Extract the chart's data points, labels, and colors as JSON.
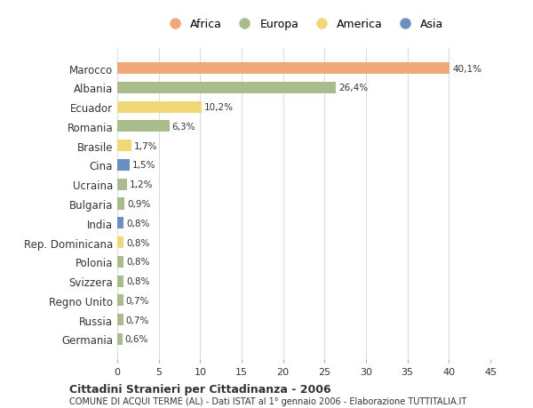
{
  "countries": [
    "Marocco",
    "Albania",
    "Ecuador",
    "Romania",
    "Brasile",
    "Cina",
    "Ucraina",
    "Bulgaria",
    "India",
    "Rep. Dominicana",
    "Polonia",
    "Svizzera",
    "Regno Unito",
    "Russia",
    "Germania"
  ],
  "values": [
    40.1,
    26.4,
    10.2,
    6.3,
    1.7,
    1.5,
    1.2,
    0.9,
    0.8,
    0.8,
    0.8,
    0.8,
    0.7,
    0.7,
    0.6
  ],
  "labels": [
    "40,1%",
    "26,4%",
    "10,2%",
    "6,3%",
    "1,7%",
    "1,5%",
    "1,2%",
    "0,9%",
    "0,8%",
    "0,8%",
    "0,8%",
    "0,8%",
    "0,7%",
    "0,7%",
    "0,6%"
  ],
  "colors": [
    "#F0A878",
    "#A8BC8C",
    "#F0D878",
    "#A8BC8C",
    "#F0D878",
    "#6A90C0",
    "#A8BC8C",
    "#A8BC8C",
    "#6A90C0",
    "#F0D878",
    "#A8BC8C",
    "#A8BC8C",
    "#A8BC8C",
    "#A8BC8C",
    "#A8BC8C"
  ],
  "legend_labels": [
    "Africa",
    "Europa",
    "America",
    "Asia"
  ],
  "legend_colors": [
    "#F0A878",
    "#A8BC8C",
    "#F0D878",
    "#6A90C0"
  ],
  "title": "Cittadini Stranieri per Cittadinanza - 2006",
  "subtitle": "COMUNE DI ACQUI TERME (AL) - Dati ISTAT al 1° gennaio 2006 - Elaborazione TUTTITALIA.IT",
  "xlim": [
    0,
    45
  ],
  "xticks": [
    0,
    5,
    10,
    15,
    20,
    25,
    30,
    35,
    40,
    45
  ],
  "bg_color": "#FFFFFF",
  "grid_color": "#DDDDDD",
  "bar_height": 0.6,
  "text_color": "#333333"
}
